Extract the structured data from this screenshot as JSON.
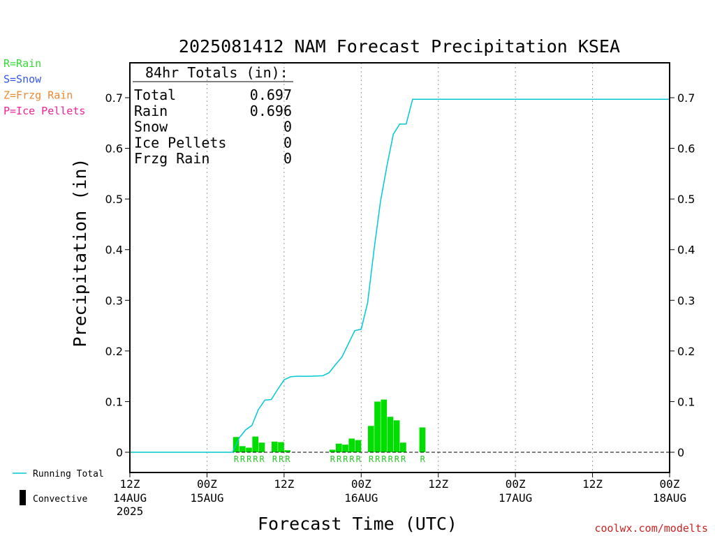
{
  "chart_data": {
    "type": "bar",
    "title": "2025081412 NAM Forecast Precipitation KSEA",
    "ylabel": "Precipitation (in)",
    "xlabel": "Forecast Time (UTC)",
    "ylim": [
      0,
      0.75
    ],
    "yticks": [
      "0",
      "0.1",
      "0.2",
      "0.3",
      "0.4",
      "0.5",
      "0.6",
      "0.7"
    ],
    "ytick_values": [
      0,
      0.1,
      0.2,
      0.3,
      0.4,
      0.5,
      0.6,
      0.7
    ],
    "xlim_hours": [
      0,
      84
    ],
    "xticks": [
      {
        "hour": 0,
        "label": "12Z",
        "sub": "14AUG",
        "sub2": "2025"
      },
      {
        "hour": 12,
        "label": "00Z",
        "sub": "15AUG",
        "sub2": ""
      },
      {
        "hour": 24,
        "label": "12Z",
        "sub": "",
        "sub2": ""
      },
      {
        "hour": 36,
        "label": "00Z",
        "sub": "16AUG",
        "sub2": ""
      },
      {
        "hour": 48,
        "label": "12Z",
        "sub": "",
        "sub2": ""
      },
      {
        "hour": 60,
        "label": "00Z",
        "sub": "17AUG",
        "sub2": ""
      },
      {
        "hour": 72,
        "label": "12Z",
        "sub": "",
        "sub2": ""
      },
      {
        "hour": 84,
        "label": "00Z",
        "sub": "18AUG",
        "sub2": ""
      }
    ],
    "grid": true,
    "hourly_precip": {
      "hours": [
        17,
        18,
        19,
        20,
        21,
        23,
        24,
        25,
        32,
        33,
        34,
        35,
        36,
        38,
        39,
        40,
        41,
        42,
        43,
        44,
        46
      ],
      "values": [
        0.03,
        0.012,
        0.009,
        0.031,
        0.019,
        0.021,
        0.02,
        0.004,
        0.005,
        0.017,
        0.015,
        0.027,
        0.024,
        0.052,
        0.1,
        0.104,
        0.07,
        0.063,
        0.019,
        0.0,
        0.049
      ],
      "type_codes": [
        "R",
        "R",
        "R",
        "R",
        "R",
        "R",
        "R",
        "R",
        "R",
        "R",
        "R",
        "R",
        "R",
        "R",
        "R",
        "R",
        "R",
        "R",
        "R",
        "",
        "R"
      ],
      "color": "#00dd00"
    },
    "series": [
      {
        "name": "Running Total",
        "color": "#00c8d4",
        "x": [
          0,
          16,
          17,
          18,
          19,
          20,
          21,
          22,
          23,
          24,
          25,
          26,
          27,
          28,
          30,
          31,
          32,
          33,
          34,
          35,
          36,
          37,
          38,
          39,
          40,
          41,
          42,
          43,
          44,
          45,
          46,
          47,
          84
        ],
        "y": [
          0,
          0,
          0.028,
          0.044,
          0.053,
          0.084,
          0.103,
          0.104,
          0.124,
          0.143,
          0.149,
          0.15,
          0.15,
          0.15,
          0.151,
          0.157,
          0.173,
          0.188,
          0.214,
          0.24,
          0.243,
          0.295,
          0.4,
          0.495,
          0.565,
          0.628,
          0.648,
          0.648,
          0.697,
          0.697,
          0.697,
          0.697,
          0.697
        ]
      }
    ],
    "totals_box": {
      "heading": "84hr Totals (in):",
      "rows": [
        {
          "label": "Total",
          "value": "0.697"
        },
        {
          "label": "Rain",
          "value": "0.696"
        },
        {
          "label": "Snow",
          "value": "0"
        },
        {
          "label": "Ice Pellets",
          "value": "0"
        },
        {
          "label": "Frzg Rain",
          "value": "0"
        }
      ]
    },
    "type_legend": [
      {
        "text": "R=Rain",
        "color": "#33dd33"
      },
      {
        "text": "S=Snow",
        "color": "#3355ee"
      },
      {
        "text": "Z=Frzg Rain",
        "color": "#ee8833"
      },
      {
        "text": "P=Ice Pellets",
        "color": "#ee2299"
      }
    ],
    "bottom_legend": [
      {
        "text": "Running Total",
        "kind": "line",
        "color": "#00c8d4"
      },
      {
        "text": "Convective",
        "kind": "bar",
        "color": "#000000"
      }
    ],
    "credit": "coolwx.com/modelts",
    "credit_color": "#cc2222"
  }
}
